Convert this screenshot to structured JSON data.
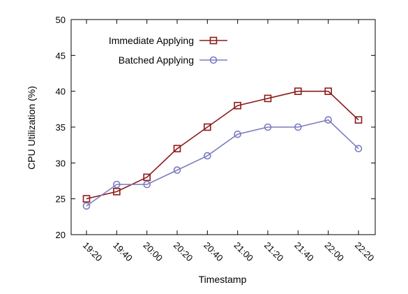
{
  "chart_data": {
    "type": "line",
    "xlabel": "Timestamp",
    "ylabel": "CPU Utilization (%)",
    "ylim": [
      20,
      50
    ],
    "yticks": [
      20,
      25,
      30,
      35,
      40,
      45,
      50
    ],
    "categories": [
      "19:20",
      "19:40",
      "20:00",
      "20:20",
      "20:40",
      "21:00",
      "21:20",
      "21:40",
      "22:00",
      "22:20"
    ],
    "legend_position": "top-left",
    "grid": false,
    "series": [
      {
        "name": "Immediate Applying",
        "marker": "square",
        "color": "#8b1a1a",
        "values": [
          25,
          26,
          28,
          32,
          35,
          38,
          39,
          40,
          40,
          36
        ]
      },
      {
        "name": "Batched Applying",
        "marker": "circle",
        "color": "#7b7bbf",
        "values": [
          24,
          27,
          27,
          29,
          31,
          34,
          35,
          35,
          36,
          32
        ]
      }
    ]
  }
}
